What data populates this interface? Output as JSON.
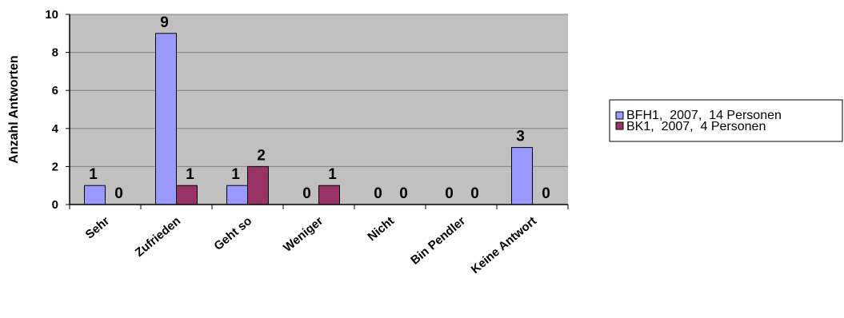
{
  "chart_data": {
    "type": "bar",
    "title": "",
    "xlabel": "",
    "ylabel": "Anzahl Antworten",
    "ylim": [
      0,
      10
    ],
    "yticks": [
      0,
      2,
      4,
      6,
      8,
      10
    ],
    "grid": true,
    "legend_position": "right",
    "categories": [
      "Sehr",
      "Zufrieden",
      "Geht so",
      "Weniger",
      "Nicht",
      "Bin Pendler",
      "Keine Antwort"
    ],
    "series": [
      {
        "name": "BFH1,  2007,  14 Personen",
        "color": "#9999ff",
        "values": [
          1,
          9,
          1,
          0,
          0,
          0,
          3
        ]
      },
      {
        "name": "BK1,  2007,  4 Personen",
        "color": "#993366",
        "values": [
          0,
          1,
          2,
          1,
          0,
          0,
          0
        ]
      }
    ],
    "colors": {
      "plot_background": "#c0c0c0",
      "gridline": "#808080",
      "bar_outline": "#000000"
    }
  }
}
